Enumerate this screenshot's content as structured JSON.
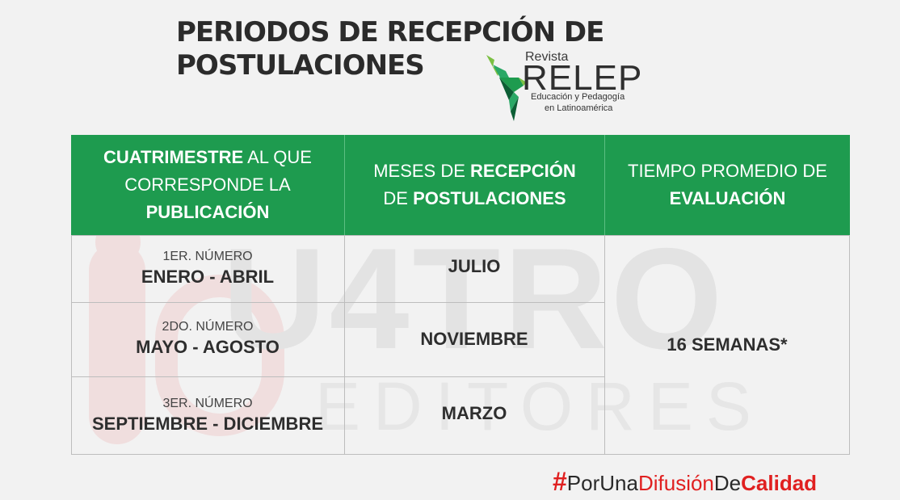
{
  "title": {
    "line1": "PERIODOS DE RECEPCIÓN DE",
    "line2": "POSTULACIONES"
  },
  "logo": {
    "revista": "Revista",
    "name": "RELEP",
    "subtitle1": "Educación y Pedagogía",
    "subtitle2": "en Latinoamérica",
    "colors": [
      "#1e9b4f",
      "#7cc043",
      "#0d5e35",
      "#2aa866"
    ]
  },
  "watermark": {
    "big": "U4TRO",
    "small": "EDITORES"
  },
  "table": {
    "headers": [
      {
        "bold1": "CUATRIMESTRE",
        "text1": " AL QUE",
        "text2": "CORRESPONDE LA",
        "bold2": "PUBLICACIÓN"
      },
      {
        "text1": "MESES DE ",
        "bold1": "RECEPCIÓN",
        "text2": "DE ",
        "bold2": "POSTULACIONES"
      },
      {
        "text1": "TIEMPO PROMEDIO DE",
        "bold1": "EVALUACIÓN"
      }
    ],
    "rows": [
      {
        "numero": "1ER. NÚMERO",
        "periodo": "ENERO - ABRIL",
        "mes": "JULIO"
      },
      {
        "numero": "2DO. NÚMERO",
        "periodo": "MAYO - AGOSTO",
        "mes": "NOVIEMBRE"
      },
      {
        "numero": "3ER. NÚMERO",
        "periodo": "SEPTIEMBRE - DICIEMBRE",
        "mes": "MARZO"
      }
    ],
    "tiempo": "16 SEMANAS*",
    "header_color": "#1e9b4f"
  },
  "hashtag": {
    "hash": "#",
    "p1": "PorUna",
    "p2": "Difusión",
    "p3": "De",
    "p4": "Calidad",
    "accent": "#e02020"
  }
}
